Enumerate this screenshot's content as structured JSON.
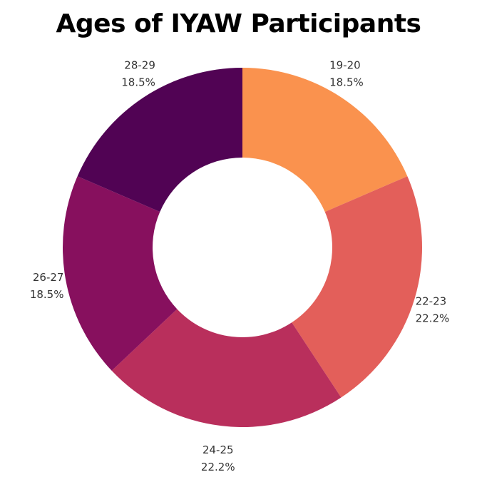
{
  "chart_data": {
    "type": "pie",
    "style": "donut",
    "title": "Ages of IYAW Participants",
    "categories": [
      "19-20",
      "22-23",
      "24-25",
      "26-27",
      "28-29"
    ],
    "values": [
      18.5,
      22.2,
      22.2,
      18.5,
      18.5
    ],
    "value_labels": [
      "18.5%",
      "22.2%",
      "22.2%",
      "18.5%",
      "18.5%"
    ],
    "colors": [
      "#fa924e",
      "#e35f5a",
      "#b92f5c",
      "#87105e",
      "#510354"
    ],
    "start_angle": "12 o'clock",
    "direction": "clockwise",
    "legend": "none",
    "labels": "outside"
  }
}
